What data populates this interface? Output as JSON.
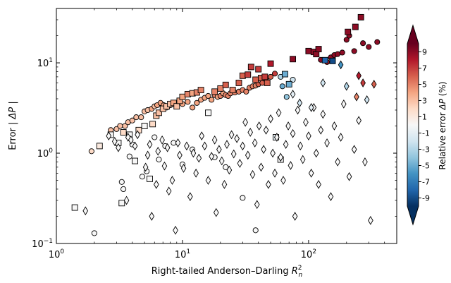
{
  "chart_data": {
    "type": "scatter",
    "title": "",
    "xlabel_main": "Right-tailed Anderson–Darling ",
    "xlabel_sym": "R",
    "xlabel_sup": "2",
    "xlabel_sub": "n",
    "ylabel_main": "Error ",
    "ylabel_sym": "| ΔP |",
    "x_scale": "log",
    "y_scale": "log",
    "xlim": [
      1,
      500
    ],
    "ylim": [
      0.1,
      40
    ],
    "x_ticks": [
      {
        "value": 1,
        "base": "10",
        "exp": "0"
      },
      {
        "value": 10,
        "base": "10",
        "exp": "1"
      },
      {
        "value": 100,
        "base": "10",
        "exp": "2"
      }
    ],
    "y_ticks": [
      {
        "value": 0.1,
        "base": "10",
        "exp": "−1"
      },
      {
        "value": 1,
        "base": "10",
        "exp": "0"
      },
      {
        "value": 10,
        "base": "10",
        "exp": "1"
      }
    ],
    "grid": false,
    "legend": "none",
    "colorbar": {
      "label_main": "Relative error ",
      "label_sym": "ΔP",
      "label_unit": " (%)",
      "min": -10,
      "max": 10,
      "extend": "both",
      "ticks": [
        {
          "value": 9,
          "label": "9"
        },
        {
          "value": 7,
          "label": "7"
        },
        {
          "value": 5,
          "label": "5"
        },
        {
          "value": 3,
          "label": "3"
        },
        {
          "value": 1,
          "label": "1"
        },
        {
          "value": -1,
          "label": "-1"
        },
        {
          "value": -3,
          "label": "-3"
        },
        {
          "value": -5,
          "label": "-5"
        },
        {
          "value": -7,
          "label": "-7"
        },
        {
          "value": -9,
          "label": "-9"
        }
      ],
      "colors": [
        "#053061",
        "#2166ac",
        "#4393c3",
        "#92c5de",
        "#d1e5f0",
        "#f7f7f7",
        "#fddbc7",
        "#f4a582",
        "#d6604d",
        "#b2182b",
        "#67001f"
      ]
    },
    "series": [
      {
        "marker": "circle",
        "points": [
          [
            1.9,
            1.05,
            2
          ],
          [
            2.7,
            1.8,
            3
          ],
          [
            3.0,
            1.85,
            3
          ],
          [
            3.2,
            2.0,
            3
          ],
          [
            3.5,
            2.0,
            3
          ],
          [
            3.7,
            2.2,
            3
          ],
          [
            4.0,
            2.3,
            3
          ],
          [
            4.3,
            2.5,
            3
          ],
          [
            4.7,
            2.5,
            3
          ],
          [
            5.0,
            2.9,
            3
          ],
          [
            5.3,
            3.0,
            3
          ],
          [
            5.7,
            3.1,
            4
          ],
          [
            6.0,
            3.3,
            3
          ],
          [
            6.3,
            3.4,
            4
          ],
          [
            6.7,
            3.6,
            4
          ],
          [
            7.1,
            3.4,
            4
          ],
          [
            7.5,
            3.2,
            3
          ],
          [
            8.0,
            3.4,
            4
          ],
          [
            8.5,
            3.6,
            3
          ],
          [
            9.0,
            3.4,
            4
          ],
          [
            10,
            3.5,
            4
          ],
          [
            11,
            3.7,
            4
          ],
          [
            12,
            3.2,
            4
          ],
          [
            13,
            3.6,
            4
          ],
          [
            14,
            3.9,
            4
          ],
          [
            15,
            4.1,
            4
          ],
          [
            16,
            4.3,
            4
          ],
          [
            17,
            3.9,
            4
          ],
          [
            18,
            4.4,
            5
          ],
          [
            19,
            4.2,
            4
          ],
          [
            20,
            4.3,
            5
          ],
          [
            21,
            4.6,
            4
          ],
          [
            22,
            4.4,
            5
          ],
          [
            23,
            4.3,
            5
          ],
          [
            24,
            4.6,
            5
          ],
          [
            26,
            4.7,
            5
          ],
          [
            28,
            4.8,
            5
          ],
          [
            30,
            5.0,
            5
          ],
          [
            32,
            4.8,
            5
          ],
          [
            34,
            5.3,
            5
          ],
          [
            36,
            5.5,
            5
          ],
          [
            38,
            5.6,
            5
          ],
          [
            40,
            5.8,
            6
          ],
          [
            43,
            6.0,
            6
          ],
          [
            46,
            6.5,
            6
          ],
          [
            50,
            7.0,
            6
          ],
          [
            54,
            7.6,
            7
          ],
          [
            60,
            7.0,
            -3
          ],
          [
            62,
            5.5,
            -5
          ],
          [
            67,
            4.2,
            -4
          ],
          [
            75,
            6.5,
            -2
          ],
          [
            125,
            10.8,
            9
          ],
          [
            140,
            10.2,
            8
          ],
          [
            150,
            11.5,
            9
          ],
          [
            160,
            12.2,
            9
          ],
          [
            170,
            12.5,
            9
          ],
          [
            185,
            13.0,
            9
          ],
          [
            200,
            18.0,
            9
          ],
          [
            210,
            20.0,
            9
          ],
          [
            230,
            13.5,
            9
          ],
          [
            270,
            16.5,
            9
          ],
          [
            300,
            15.0,
            9
          ],
          [
            350,
            17.0,
            9
          ],
          [
            3.3,
            0.48,
            0
          ],
          [
            3.4,
            0.4,
            0
          ],
          [
            4.8,
            0.55,
            0
          ],
          [
            5.2,
            0.63,
            0
          ],
          [
            3.8,
            0.92,
            0
          ],
          [
            6.5,
            0.85,
            0
          ],
          [
            2.0,
            0.13,
            0
          ],
          [
            10,
            0.75,
            0
          ],
          [
            8.5,
            1.3,
            0
          ],
          [
            12,
            1.1,
            0
          ],
          [
            30,
            0.32,
            0
          ],
          [
            38,
            0.14,
            0
          ],
          [
            4.0,
            1.25,
            0
          ],
          [
            6.0,
            1.5,
            0
          ],
          [
            18,
            0.9,
            0
          ],
          [
            7.3,
            1.2,
            0
          ],
          [
            22,
            0.7,
            0
          ]
        ]
      },
      {
        "marker": "square",
        "points": [
          [
            1.4,
            0.25,
            0
          ],
          [
            2.2,
            1.2,
            1
          ],
          [
            2.7,
            1.6,
            0
          ],
          [
            3.1,
            1.3,
            0
          ],
          [
            3.3,
            0.28,
            0
          ],
          [
            3.4,
            1.7,
            2
          ],
          [
            3.8,
            1.6,
            0
          ],
          [
            4.2,
            0.82,
            0
          ],
          [
            4.5,
            1.8,
            2
          ],
          [
            5.0,
            2.0,
            0
          ],
          [
            5.5,
            0.52,
            0
          ],
          [
            5.8,
            2.1,
            2
          ],
          [
            6.2,
            2.6,
            3
          ],
          [
            6.5,
            2.8,
            3
          ],
          [
            7.0,
            3.1,
            3
          ],
          [
            7.5,
            3.3,
            3
          ],
          [
            8.0,
            3.5,
            3
          ],
          [
            8.5,
            3.6,
            4
          ],
          [
            9.0,
            3.3,
            3
          ],
          [
            9.5,
            3.8,
            4
          ],
          [
            10,
            4.2,
            4
          ],
          [
            11,
            4.5,
            5
          ],
          [
            12,
            4.6,
            4
          ],
          [
            13,
            4.7,
            5
          ],
          [
            14,
            5.0,
            5
          ],
          [
            16,
            2.8,
            0
          ],
          [
            18,
            4.8,
            5
          ],
          [
            20,
            5.2,
            5
          ],
          [
            22,
            5.7,
            6
          ],
          [
            25,
            5.0,
            5
          ],
          [
            28,
            6.0,
            6
          ],
          [
            30,
            7.2,
            6
          ],
          [
            33,
            7.4,
            7
          ],
          [
            35,
            9.0,
            7
          ],
          [
            38,
            6.5,
            6
          ],
          [
            40,
            8.5,
            7
          ],
          [
            42,
            6.8,
            6
          ],
          [
            45,
            7.0,
            7
          ],
          [
            47,
            6.0,
            6
          ],
          [
            50,
            9.8,
            8
          ],
          [
            55,
            1.5,
            -1
          ],
          [
            60,
            0.85,
            0
          ],
          [
            65,
            7.5,
            -5
          ],
          [
            70,
            5.8,
            -5
          ],
          [
            75,
            11.0,
            9
          ],
          [
            100,
            13.5,
            9
          ],
          [
            110,
            13.2,
            9
          ],
          [
            115,
            12.5,
            9
          ],
          [
            120,
            14.2,
            9
          ],
          [
            135,
            10.7,
            -8
          ],
          [
            155,
            10.5,
            -9
          ],
          [
            205,
            22.0,
            9
          ],
          [
            235,
            25.0,
            9
          ],
          [
            260,
            32.0,
            9
          ]
        ]
      },
      {
        "marker": "diamond",
        "points": [
          [
            1.7,
            0.23,
            0
          ],
          [
            2.6,
            1.55,
            0
          ],
          [
            2.9,
            1.35,
            0
          ],
          [
            3.1,
            1.15,
            0
          ],
          [
            3.6,
            0.3,
            0
          ],
          [
            3.7,
            1.5,
            0
          ],
          [
            3.9,
            1.4,
            0
          ],
          [
            4.2,
            1.2,
            0
          ],
          [
            4.4,
            1.6,
            0
          ],
          [
            5.1,
            0.7,
            0
          ],
          [
            5.3,
            0.95,
            0
          ],
          [
            5.5,
            1.25,
            0
          ],
          [
            5.7,
            0.2,
            0
          ],
          [
            6.2,
            0.45,
            0
          ],
          [
            6.4,
            1.05,
            0
          ],
          [
            6.9,
            1.4,
            0
          ],
          [
            7.2,
            0.72,
            0
          ],
          [
            7.6,
            1.15,
            0
          ],
          [
            7.8,
            0.38,
            0
          ],
          [
            8.3,
            0.5,
            0
          ],
          [
            8.8,
            0.14,
            0
          ],
          [
            9.2,
            1.3,
            0
          ],
          [
            9.5,
            0.95,
            0
          ],
          [
            10.2,
            0.68,
            0
          ],
          [
            10.8,
            1.2,
            0
          ],
          [
            11.5,
            0.33,
            0
          ],
          [
            12.2,
            1.0,
            0
          ],
          [
            12.8,
            0.6,
            0
          ],
          [
            13.5,
            0.88,
            0
          ],
          [
            14.2,
            1.55,
            0
          ],
          [
            15.0,
            1.2,
            0
          ],
          [
            16.0,
            0.5,
            0
          ],
          [
            17.0,
            0.92,
            0
          ],
          [
            18.0,
            1.4,
            0
          ],
          [
            18.5,
            0.22,
            0
          ],
          [
            19.5,
            1.1,
            0
          ],
          [
            20.5,
            0.82,
            0
          ],
          [
            21.5,
            0.45,
            0
          ],
          [
            22.5,
            1.25,
            0
          ],
          [
            23.5,
            0.65,
            0
          ],
          [
            24.5,
            1.6,
            0
          ],
          [
            25.5,
            0.98,
            0
          ],
          [
            27.0,
            1.45,
            0
          ],
          [
            28.5,
            0.77,
            0
          ],
          [
            30.0,
            1.2,
            0
          ],
          [
            31.5,
            2.2,
            0
          ],
          [
            33.0,
            0.95,
            0
          ],
          [
            34.5,
            1.7,
            0
          ],
          [
            36.0,
            0.58,
            0
          ],
          [
            37.5,
            1.3,
            0
          ],
          [
            39.0,
            0.27,
            0
          ],
          [
            40.5,
            2.0,
            0
          ],
          [
            42.0,
            0.7,
            0
          ],
          [
            44.0,
            1.1,
            0
          ],
          [
            46.0,
            1.8,
            0
          ],
          [
            48.0,
            0.45,
            0
          ],
          [
            50.0,
            2.4,
            0
          ],
          [
            52.0,
            1.0,
            0
          ],
          [
            54.0,
            0.6,
            0
          ],
          [
            56.0,
            1.5,
            0
          ],
          [
            58.0,
            2.8,
            0
          ],
          [
            60.0,
            0.9,
            0
          ],
          [
            63.0,
            0.5,
            0
          ],
          [
            66.0,
            1.25,
            0
          ],
          [
            69.0,
            2.0,
            0
          ],
          [
            72.0,
            0.73,
            0
          ],
          [
            75.0,
            1.65,
            0
          ],
          [
            78.0,
            0.2,
            0
          ],
          [
            82.0,
            3.0,
            0
          ],
          [
            86.0,
            1.2,
            0
          ],
          [
            90.0,
            0.85,
            0
          ],
          [
            95.0,
            2.2,
            0
          ],
          [
            100.0,
            1.55,
            0
          ],
          [
            105.0,
            0.6,
            0
          ],
          [
            110.0,
            3.2,
            0
          ],
          [
            115.0,
            1.0,
            0
          ],
          [
            120.0,
            0.45,
            0
          ],
          [
            125.0,
            1.8,
            0
          ],
          [
            130.0,
            2.7,
            0
          ],
          [
            140.0,
            1.3,
            0
          ],
          [
            150.0,
            0.33,
            0
          ],
          [
            160.0,
            2.0,
            0
          ],
          [
            170.0,
            0.8,
            0
          ],
          [
            180.0,
            1.5,
            0
          ],
          [
            190.0,
            3.5,
            0
          ],
          [
            210.0,
            0.55,
            0
          ],
          [
            230.0,
            1.1,
            0
          ],
          [
            250.0,
            2.3,
            0
          ],
          [
            280.0,
            0.8,
            0
          ],
          [
            310.0,
            0.18,
            0
          ],
          [
            130.0,
            6.0,
            -2
          ],
          [
            105.0,
            3.2,
            -1
          ],
          [
            85.0,
            3.6,
            -2
          ],
          [
            75.0,
            4.5,
            -1
          ],
          [
            180.0,
            9.5,
            -6
          ],
          [
            290.0,
            3.9,
            -2
          ],
          [
            200.0,
            5.5,
            -3
          ],
          [
            240.0,
            4.2,
            5
          ],
          [
            330.0,
            5.8,
            6
          ],
          [
            270.0,
            6.0,
            7
          ],
          [
            250.0,
            7.2,
            8
          ]
        ]
      }
    ]
  }
}
